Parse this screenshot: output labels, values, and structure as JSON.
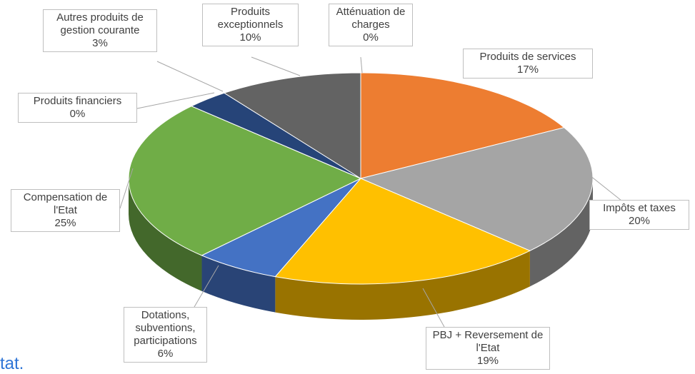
{
  "chart_data": {
    "type": "pie",
    "categories": [
      "Atténuation de charges",
      "Produits de services",
      "Impôts et taxes",
      "PBJ + Reversement de l'Etat",
      "Dotations, subventions, participations",
      "Compensation de l'Etat",
      "Produits financiers",
      "Autres produits de gestion courante",
      "Produits exceptionnels"
    ],
    "values": [
      0,
      17,
      20,
      19,
      6,
      25,
      0,
      3,
      10
    ],
    "value_labels": [
      "0%",
      "17%",
      "20%",
      "19%",
      "6%",
      "25%",
      "0%",
      "3%",
      "10%"
    ],
    "colors": [
      "#9e480e",
      "#ed7d31",
      "#a5a5a5",
      "#ffc000",
      "#4472c4",
      "#70ad47",
      "#997300",
      "#264478",
      "#636363"
    ]
  },
  "fragment": "tat."
}
